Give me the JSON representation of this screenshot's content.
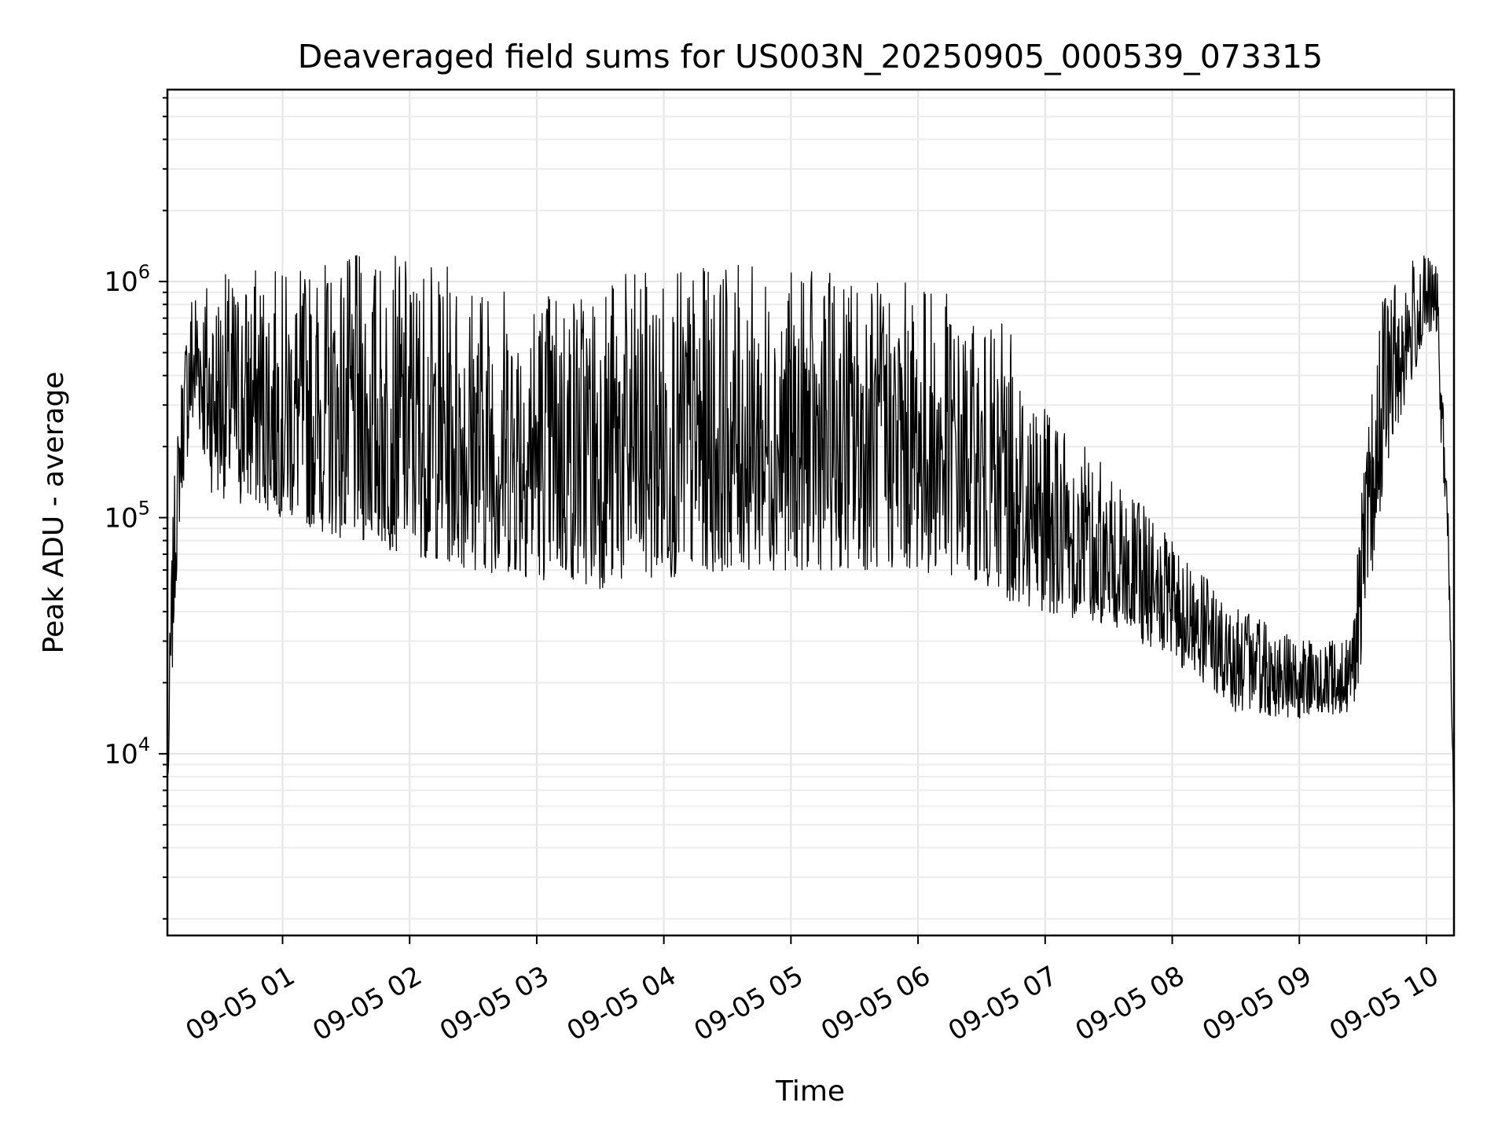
{
  "chart_data": {
    "type": "line",
    "title": "Deaveraged field sums for US003N_20250905_000539_073315",
    "xlabel": "Time",
    "ylabel": "Peak ADU - average",
    "yscale": "log",
    "ylim": [
      1700,
      6500000
    ],
    "xlim": [
      "2025-09-05 00:05:39",
      "2025-09-05 10:13:00"
    ],
    "grid": true,
    "color": "#000000",
    "x_ticks": [
      "09-05 01",
      "09-05 02",
      "09-05 03",
      "09-05 04",
      "09-05 05",
      "09-05 06",
      "09-05 07",
      "09-05 08",
      "09-05 09",
      "09-05 10"
    ],
    "y_ticks": [
      {
        "value": 10000,
        "base": "10",
        "exp": "4"
      },
      {
        "value": 100000,
        "base": "10",
        "exp": "5"
      },
      {
        "value": 1000000,
        "base": "10",
        "exp": "6"
      }
    ],
    "series": [
      {
        "x": [
          "2025-09-05 00:06",
          "2025-09-05 00:07",
          "2025-09-05 00:09",
          "2025-09-05 00:12",
          "2025-09-05 00:16",
          "2025-09-05 00:20",
          "2025-09-05 00:25",
          "2025-09-05 00:33",
          "2025-09-05 00:40",
          "2025-09-05 00:50",
          "2025-09-05 01:00",
          "2025-09-05 01:30",
          "2025-09-05 02:00",
          "2025-09-05 02:30",
          "2025-09-05 03:00",
          "2025-09-05 03:30",
          "2025-09-05 04:00",
          "2025-09-05 04:30",
          "2025-09-05 05:00",
          "2025-09-05 05:30",
          "2025-09-05 06:00",
          "2025-09-05 06:15",
          "2025-09-05 06:20",
          "2025-09-05 06:40",
          "2025-09-05 07:00",
          "2025-09-05 07:30",
          "2025-09-05 08:00",
          "2025-09-05 08:30",
          "2025-09-05 09:00",
          "2025-09-05 09:25",
          "2025-09-05 09:30",
          "2025-09-05 09:40",
          "2025-09-05 09:50",
          "2025-09-05 10:00",
          "2025-09-05 10:05",
          "2025-09-05 10:07",
          "2025-09-05 10:10",
          "2025-09-05 10:13"
        ],
        "lower": [
          7500,
          12000,
          40000,
          120000,
          200000,
          250000,
          130000,
          120000,
          110000,
          110000,
          100000,
          80000,
          70000,
          60000,
          55000,
          50000,
          55000,
          60000,
          60000,
          60000,
          60000,
          55000,
          60000,
          45000,
          40000,
          35000,
          25000,
          15000,
          14000,
          15000,
          25000,
          150000,
          300000,
          600000,
          600000,
          200000,
          80000,
          5000
        ],
        "upper": [
          9000,
          50000,
          150000,
          400000,
          1000000,
          1200000,
          1100000,
          1100000,
          1100000,
          1200000,
          1100000,
          1300000,
          1300000,
          1100000,
          1000000,
          1100000,
          1100000,
          1200000,
          1100000,
          1100000,
          1000000,
          900000,
          700000,
          600000,
          300000,
          150000,
          80000,
          40000,
          30000,
          30000,
          150000,
          1000000,
          1200000,
          1300000,
          1200000,
          400000,
          150000,
          6000
        ]
      }
    ]
  }
}
